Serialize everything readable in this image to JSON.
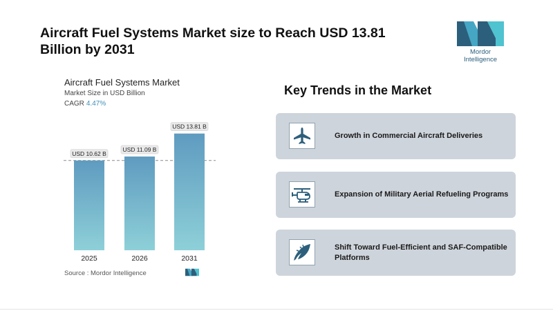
{
  "headline": "Aircraft Fuel Systems Market size to Reach USD 13.81 Billion by 2031",
  "logo": {
    "text": "Mordor Intelligence"
  },
  "chart": {
    "title": "Aircraft Fuel Systems Market",
    "subtitle": "Market Size in USD Billion",
    "cagr_label": "CAGR",
    "cagr_value": "4.47%",
    "source": "Source :  Mordor Intelligence"
  },
  "chart_data": {
    "type": "bar",
    "title": "Aircraft Fuel Systems Market",
    "ylabel": "Market Size in USD Billion",
    "categories": [
      "2025",
      "2026",
      "2031"
    ],
    "values": [
      10.62,
      11.09,
      13.81
    ],
    "data_labels": [
      "USD 10.62 B",
      "USD 11.09 B",
      "USD 13.81 B"
    ],
    "ylim": [
      0,
      14.6
    ],
    "reference_line": 10.62,
    "grid": false,
    "bar_color_top": "#5f9bc0",
    "bar_color_bottom": "#8ed0d8"
  },
  "trends": {
    "title": "Key Trends in the Market",
    "items": [
      {
        "label": "Growth in Commercial Aircraft Deliveries",
        "icon": "airplane-icon"
      },
      {
        "label": "Expansion of Military Aerial Refueling Programs",
        "icon": "helicopter-icon"
      },
      {
        "label": "Shift Toward Fuel-Efficient and SAF-Compatible Platforms",
        "icon": "leaf-icon"
      }
    ]
  },
  "colors": {
    "accent": "#3f8fb5",
    "card": "#ced4db",
    "icon": "#2c5f7c"
  }
}
